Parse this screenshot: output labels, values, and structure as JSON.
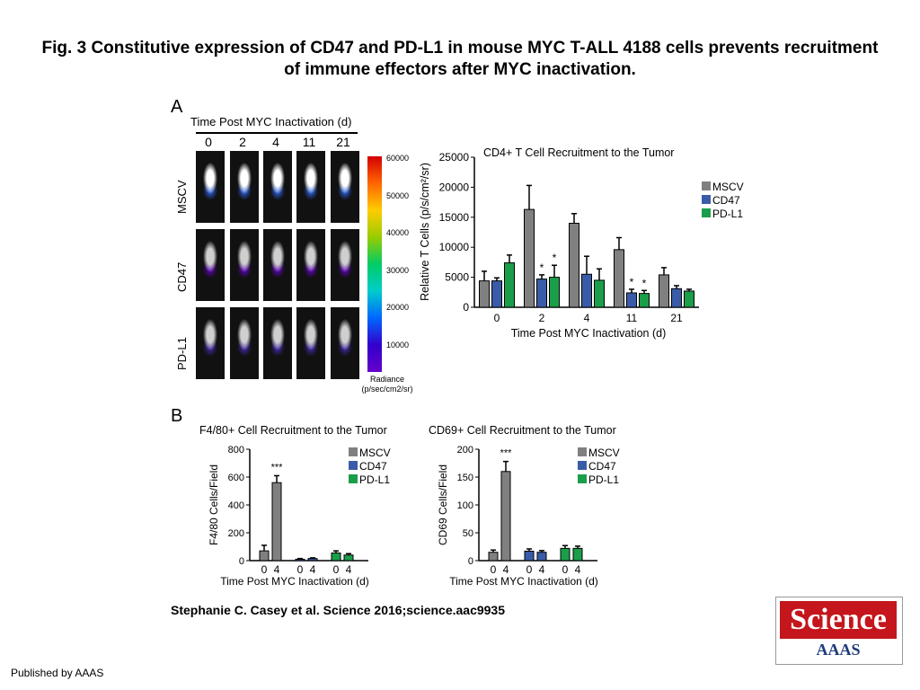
{
  "figure": {
    "title": "Fig. 3 Constitutive expression of CD47 and PD-L1 in mouse MYC T-ALL 4188 cells prevents recruitment of immune effectors after MYC inactivation.",
    "credit": "Stephanie C. Casey et al. Science 2016;science.aac9935",
    "publisher": "Published by AAAS",
    "logo_word": "Science",
    "logo_sub": "AAAS"
  },
  "panel_a": {
    "letter": "A",
    "time_axis_label": "Time Post MYC Inactivation (d)",
    "timepoints": [
      "0",
      "2",
      "4",
      "11",
      "21"
    ],
    "rows": [
      "MSCV",
      "CD47",
      "PD-L1"
    ],
    "colorbar_ticks": [
      "60000",
      "50000",
      "40000",
      "30000",
      "20000",
      "10000"
    ],
    "colorbar_label": "Radiance (p/sec/cm2/sr)"
  },
  "panel_b": {
    "letter": "B"
  },
  "chart_data": [
    {
      "type": "bar",
      "title": "CD4+ T Cell Recruitment to the Tumor",
      "xlabel": "Time Post MYC Inactivation (d)",
      "ylabel": "Relative  T Cells (p/s/cm²/sr)",
      "categories": [
        "0",
        "2",
        "4",
        "11",
        "21"
      ],
      "ylim": [
        0,
        25000
      ],
      "yticks": [
        "0",
        "5000",
        "10000",
        "15000",
        "20000",
        "25000"
      ],
      "legend": "top-right",
      "series": [
        {
          "name": "MSCV",
          "color": "#808080",
          "values": [
            4400,
            16300,
            14000,
            9600,
            5400
          ],
          "errors": [
            1600,
            4000,
            1600,
            2000,
            1200
          ]
        },
        {
          "name": "CD47",
          "color": "#3a5ca8",
          "values": [
            4400,
            4700,
            5500,
            2400,
            3100
          ],
          "errors": [
            500,
            700,
            3000,
            600,
            500
          ]
        },
        {
          "name": "PD-L1",
          "color": "#1a9e4a",
          "values": [
            7400,
            5000,
            4500,
            2300,
            2700
          ],
          "errors": [
            1300,
            2000,
            1900,
            500,
            300
          ]
        }
      ],
      "annotations": [
        {
          "text": "*",
          "category": "2",
          "series": "CD47"
        },
        {
          "text": "*",
          "category": "2",
          "series": "PD-L1"
        },
        {
          "text": "*",
          "category": "11",
          "series": "CD47"
        },
        {
          "text": "*",
          "category": "11",
          "series": "PD-L1"
        }
      ]
    },
    {
      "type": "bar",
      "title": "F4/80+ Cell Recruitment to the Tumor",
      "xlabel": "Time Post MYC Inactivation (d)",
      "ylabel": "F4/80 Cells/Field",
      "categories": [
        "0",
        "4",
        "0",
        "4",
        "0",
        "4"
      ],
      "ylim": [
        0,
        800
      ],
      "yticks": [
        "0",
        "200",
        "400",
        "600",
        "800"
      ],
      "legend": "top-right",
      "legend_entries": [
        {
          "name": "MSCV",
          "color": "#808080"
        },
        {
          "name": "CD47",
          "color": "#3a5ca8"
        },
        {
          "name": "PD-L1",
          "color": "#1a9e4a"
        }
      ],
      "bar_colors": [
        "#808080",
        "#808080",
        "#3a5ca8",
        "#3a5ca8",
        "#1a9e4a",
        "#1a9e4a"
      ],
      "values": [
        70,
        560,
        10,
        15,
        55,
        40
      ],
      "errors": [
        40,
        50,
        5,
        5,
        15,
        10
      ],
      "annotations": [
        {
          "text": "***",
          "index": 1
        }
      ]
    },
    {
      "type": "bar",
      "title": "CD69+ Cell Recruitment to the Tumor",
      "xlabel": "Time Post MYC Inactivation (d)",
      "ylabel": "CD69 Cells/Field",
      "categories": [
        "0",
        "4",
        "0",
        "4",
        "0",
        "4"
      ],
      "ylim": [
        0,
        200
      ],
      "yticks": [
        "0",
        "50",
        "100",
        "150",
        "200"
      ],
      "legend": "top-right",
      "legend_entries": [
        {
          "name": "MSCV",
          "color": "#808080"
        },
        {
          "name": "CD47",
          "color": "#3a5ca8"
        },
        {
          "name": "PD-L1",
          "color": "#1a9e4a"
        }
      ],
      "bar_colors": [
        "#808080",
        "#808080",
        "#3a5ca8",
        "#3a5ca8",
        "#1a9e4a",
        "#1a9e4a"
      ],
      "values": [
        15,
        160,
        17,
        15,
        22,
        22
      ],
      "errors": [
        4,
        18,
        4,
        3,
        5,
        4
      ],
      "annotations": [
        {
          "text": "***",
          "index": 1
        }
      ]
    }
  ]
}
